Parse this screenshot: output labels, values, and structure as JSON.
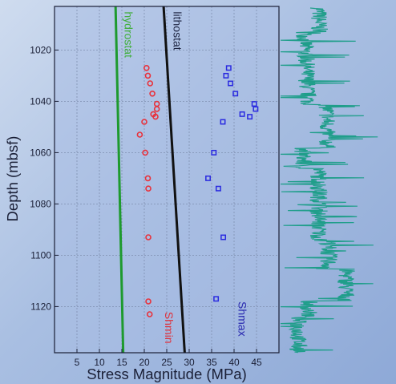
{
  "chart_data": {
    "type": "scatter",
    "title": "",
    "xlabel": "Stress Magnitude (MPa)",
    "ylabel": "Depth (mbsf)",
    "xlim": [
      0,
      50
    ],
    "ylim": [
      1003,
      1138
    ],
    "y_inverted": true,
    "grid": true,
    "x_ticks": [
      5,
      10,
      15,
      20,
      25,
      30,
      35,
      40,
      45
    ],
    "y_ticks": [
      1020,
      1040,
      1060,
      1080,
      1100,
      1120
    ],
    "lines": [
      {
        "name": "hydrostat",
        "color": "#1e9a2e",
        "points": [
          [
            13.6,
            1003
          ],
          [
            15.3,
            1138
          ]
        ]
      },
      {
        "name": "lithostat",
        "color": "#111111",
        "points": [
          [
            24.3,
            1003
          ],
          [
            29.0,
            1138
          ]
        ]
      }
    ],
    "line_labels": [
      {
        "text": "hydrostat",
        "color": "#3fae3a",
        "x": 15.6,
        "y": 1005
      },
      {
        "text": "lithostat",
        "color": "#1c2340",
        "x": 26.5,
        "y": 1005
      }
    ],
    "series": [
      {
        "name": "Shmin",
        "color": "#e8323c",
        "marker": "circle",
        "points": [
          [
            20.5,
            1027
          ],
          [
            20.8,
            1030
          ],
          [
            21.3,
            1033
          ],
          [
            21.8,
            1037
          ],
          [
            22.8,
            1041
          ],
          [
            22.8,
            1043
          ],
          [
            22.0,
            1045
          ],
          [
            22.5,
            1046
          ],
          [
            20.0,
            1048
          ],
          [
            19.0,
            1053
          ],
          [
            20.2,
            1060
          ],
          [
            20.8,
            1070
          ],
          [
            20.9,
            1074
          ],
          [
            20.9,
            1093
          ],
          [
            20.9,
            1118
          ],
          [
            21.2,
            1123
          ]
        ]
      },
      {
        "name": "Shmax",
        "color": "#2a2ae0",
        "marker": "square",
        "points": [
          [
            38.8,
            1027
          ],
          [
            38.2,
            1030
          ],
          [
            39.2,
            1033
          ],
          [
            40.3,
            1037
          ],
          [
            44.5,
            1041
          ],
          [
            44.8,
            1043
          ],
          [
            41.8,
            1045
          ],
          [
            43.5,
            1046
          ],
          [
            37.5,
            1048
          ],
          [
            35.5,
            1060
          ],
          [
            34.2,
            1070
          ],
          [
            36.5,
            1074
          ],
          [
            37.6,
            1093
          ],
          [
            36.0,
            1117
          ]
        ]
      }
    ],
    "series_labels": [
      {
        "text": "Shmin",
        "color": "#e0303a",
        "x": 24.6,
        "y": 1122
      },
      {
        "text": "Shmax",
        "color": "#2a2ab0",
        "x": 41.0,
        "y": 1118
      }
    ],
    "log_trace": {
      "color": "#1f9e8a",
      "description_label": ""
    }
  }
}
